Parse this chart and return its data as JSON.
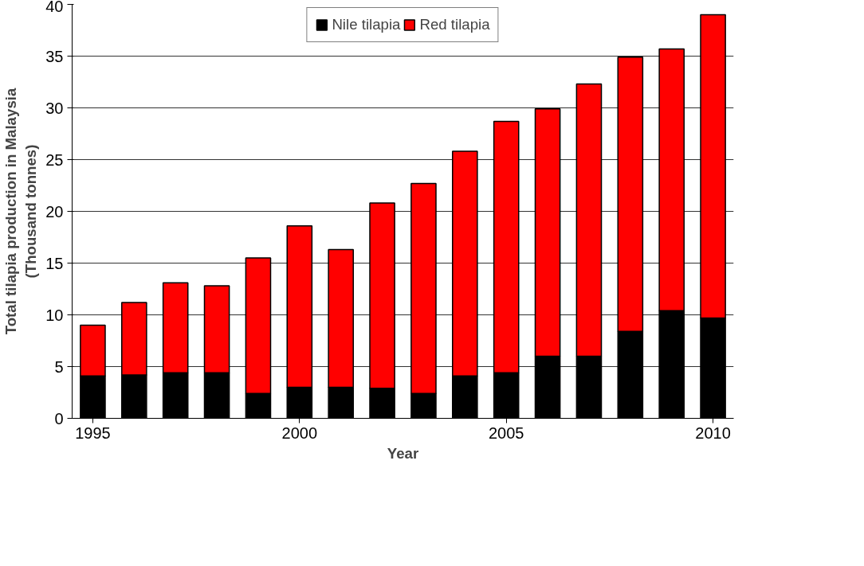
{
  "chart_data": {
    "type": "bar",
    "stacked": true,
    "xlabel": "Year",
    "ylabel": "Total tilapia production in Malaysia\n(Thousand tonnes)",
    "x": [
      1995,
      1996,
      1997,
      1998,
      1999,
      2000,
      2001,
      2002,
      2003,
      2004,
      2005,
      2006,
      2007,
      2008,
      2009,
      2010
    ],
    "series": [
      {
        "name": "Nile tilapia",
        "color": "#000000",
        "values": [
          4.1,
          4.2,
          4.4,
          4.4,
          2.4,
          3.0,
          3.0,
          2.9,
          2.4,
          4.1,
          4.4,
          6.0,
          6.0,
          8.4,
          10.4,
          9.7
        ]
      },
      {
        "name": "Red tilapia",
        "color": "#ff0000",
        "values": [
          4.9,
          7.0,
          8.7,
          8.4,
          13.1,
          15.6,
          13.3,
          17.9,
          20.3,
          21.7,
          24.3,
          23.9,
          26.3,
          26.5,
          25.3,
          29.3
        ]
      }
    ],
    "xlim": [
      1994.5,
      2010.5
    ],
    "xticks": [
      1995,
      2000,
      2005,
      2010
    ],
    "ylim": [
      0,
      40
    ],
    "yticks": [
      0,
      5,
      10,
      15,
      20,
      25,
      30,
      35,
      40
    ],
    "grid": "y",
    "legend": "top"
  }
}
